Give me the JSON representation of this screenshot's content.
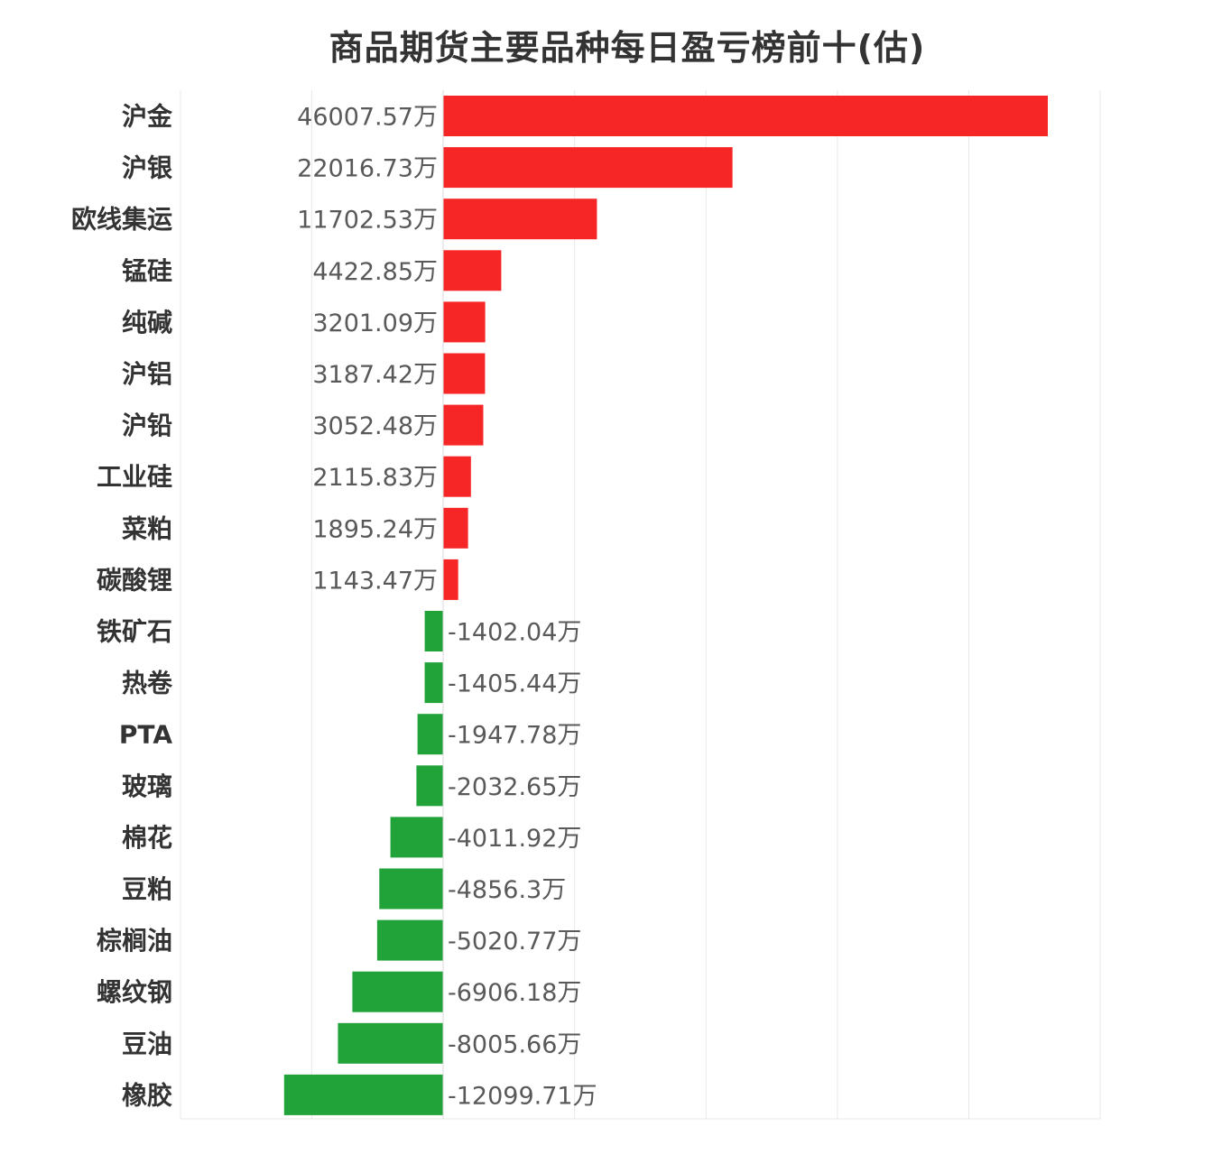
{
  "chart_data": {
    "type": "bar",
    "orientation": "horizontal",
    "title": "商品期货主要品种每日盈亏榜前十(估)",
    "unit_suffix": "万",
    "categories": [
      "沪金",
      "沪银",
      "欧线集运",
      "锰硅",
      "纯碱",
      "沪铝",
      "沪铅",
      "工业硅",
      "菜粕",
      "碳酸锂",
      "铁矿石",
      "热卷",
      "PTA",
      "玻璃",
      "棉花",
      "豆粕",
      "棕榈油",
      "螺纹钢",
      "豆油",
      "橡胶"
    ],
    "values": [
      46007.57,
      22016.73,
      11702.53,
      4422.85,
      3201.09,
      3187.42,
      3052.48,
      2115.83,
      1895.24,
      1143.47,
      -1402.04,
      -1405.44,
      -1947.78,
      -2032.65,
      -4011.92,
      -4856.3,
      -5020.77,
      -6906.18,
      -8005.66,
      -12099.71
    ],
    "value_labels": [
      "46007.57万",
      "22016.73万",
      "11702.53万",
      "4422.85万",
      "3201.09万",
      "3187.42万",
      "3052.48万",
      "2115.83万",
      "1895.24万",
      "1143.47万",
      "-1402.04万",
      "-1405.44万",
      "-1947.78万",
      "-2032.65万",
      "-4011.92万",
      "-4856.3万",
      "-5020.77万",
      "-6906.18万",
      "-8005.66万",
      "-12099.71万"
    ],
    "xlim": [
      -20000,
      50000
    ],
    "grid": true,
    "colors": {
      "positive": "#f72626",
      "negative": "#21a33a",
      "grid": "#e8e8e8"
    }
  }
}
